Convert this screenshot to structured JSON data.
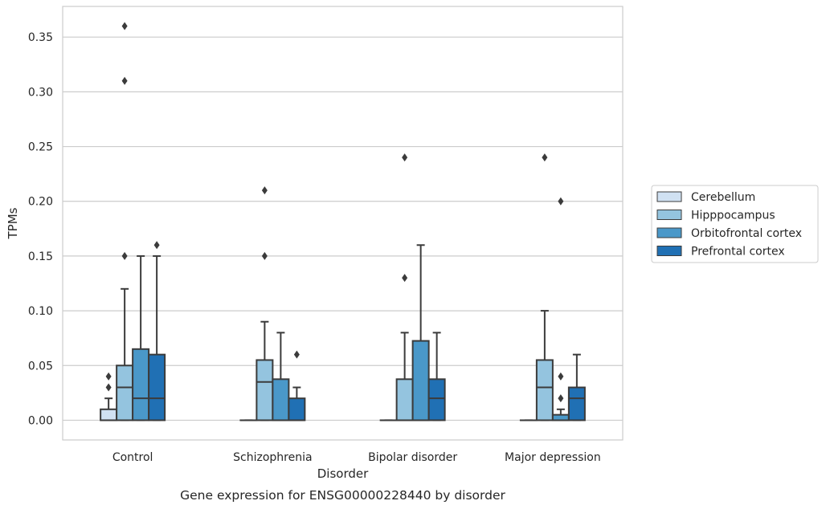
{
  "chart_data": {
    "type": "box",
    "title": "",
    "caption": "Gene expression for ENSG00000228440 by disorder",
    "xlabel": "Disorder",
    "ylabel": "TPMs",
    "ylim": [
      -0.018,
      0.378
    ],
    "yticks": [
      0.0,
      0.05,
      0.1,
      0.15,
      0.2,
      0.25,
      0.3,
      0.35
    ],
    "ytick_labels": [
      "0.00",
      "0.05",
      "0.10",
      "0.15",
      "0.20",
      "0.25",
      "0.30",
      "0.35"
    ],
    "grid": "horizontal",
    "legend_position": "right",
    "categories": [
      "Control",
      "Schizophrenia",
      "Bipolar disorder",
      "Major depression"
    ],
    "series": [
      {
        "name": "Cerebellum",
        "color": "#d0e1f2",
        "boxes": [
          {
            "whisker_low": 0.0,
            "q1": 0.0,
            "median": 0.0,
            "q3": 0.01,
            "whisker_high": 0.02,
            "outliers": [
              0.03,
              0.04
            ]
          },
          {
            "whisker_low": 0.0,
            "q1": 0.0,
            "median": 0.0,
            "q3": 0.0,
            "whisker_high": 0.0,
            "outliers": []
          },
          {
            "whisker_low": 0.0,
            "q1": 0.0,
            "median": 0.0,
            "q3": 0.0,
            "whisker_high": 0.0,
            "outliers": []
          },
          {
            "whisker_low": 0.0,
            "q1": 0.0,
            "median": 0.0,
            "q3": 0.0,
            "whisker_high": 0.0,
            "outliers": []
          }
        ]
      },
      {
        "name": "Hipppocampus",
        "color": "#94c4df",
        "boxes": [
          {
            "whisker_low": 0.0,
            "q1": 0.0,
            "median": 0.03,
            "q3": 0.05,
            "whisker_high": 0.12,
            "outliers": [
              0.15,
              0.31,
              0.36
            ]
          },
          {
            "whisker_low": 0.0,
            "q1": 0.0,
            "median": 0.035,
            "q3": 0.055,
            "whisker_high": 0.09,
            "outliers": [
              0.15,
              0.21
            ]
          },
          {
            "whisker_low": 0.0,
            "q1": 0.0,
            "median": 0.0,
            "q3": 0.0375,
            "whisker_high": 0.08,
            "outliers": [
              0.13,
              0.24
            ]
          },
          {
            "whisker_low": 0.0,
            "q1": 0.0,
            "median": 0.03,
            "q3": 0.055,
            "whisker_high": 0.1,
            "outliers": [
              0.24
            ]
          }
        ]
      },
      {
        "name": "Orbitofrontal cortex",
        "color": "#4a98c9",
        "boxes": [
          {
            "whisker_low": 0.0,
            "q1": 0.0,
            "median": 0.02,
            "q3": 0.065,
            "whisker_high": 0.15,
            "outliers": []
          },
          {
            "whisker_low": 0.0,
            "q1": 0.0,
            "median": 0.0,
            "q3": 0.0375,
            "whisker_high": 0.08,
            "outliers": []
          },
          {
            "whisker_low": 0.0,
            "q1": 0.0,
            "median": 0.0,
            "q3": 0.0725,
            "whisker_high": 0.16,
            "outliers": []
          },
          {
            "whisker_low": 0.0,
            "q1": 0.0,
            "median": 0.0,
            "q3": 0.005,
            "whisker_high": 0.01,
            "outliers": [
              0.02,
              0.04,
              0.2
            ]
          }
        ]
      },
      {
        "name": "Prefrontal cortex",
        "color": "#2070b4",
        "boxes": [
          {
            "whisker_low": 0.0,
            "q1": 0.0,
            "median": 0.02,
            "q3": 0.06,
            "whisker_high": 0.15,
            "outliers": [
              0.16
            ]
          },
          {
            "whisker_low": 0.0,
            "q1": 0.0,
            "median": 0.0,
            "q3": 0.02,
            "whisker_high": 0.03,
            "outliers": [
              0.06
            ]
          },
          {
            "whisker_low": 0.0,
            "q1": 0.0,
            "median": 0.02,
            "q3": 0.0375,
            "whisker_high": 0.08,
            "outliers": []
          },
          {
            "whisker_low": 0.0,
            "q1": 0.0,
            "median": 0.02,
            "q3": 0.03,
            "whisker_high": 0.06,
            "outliers": []
          }
        ]
      }
    ]
  }
}
